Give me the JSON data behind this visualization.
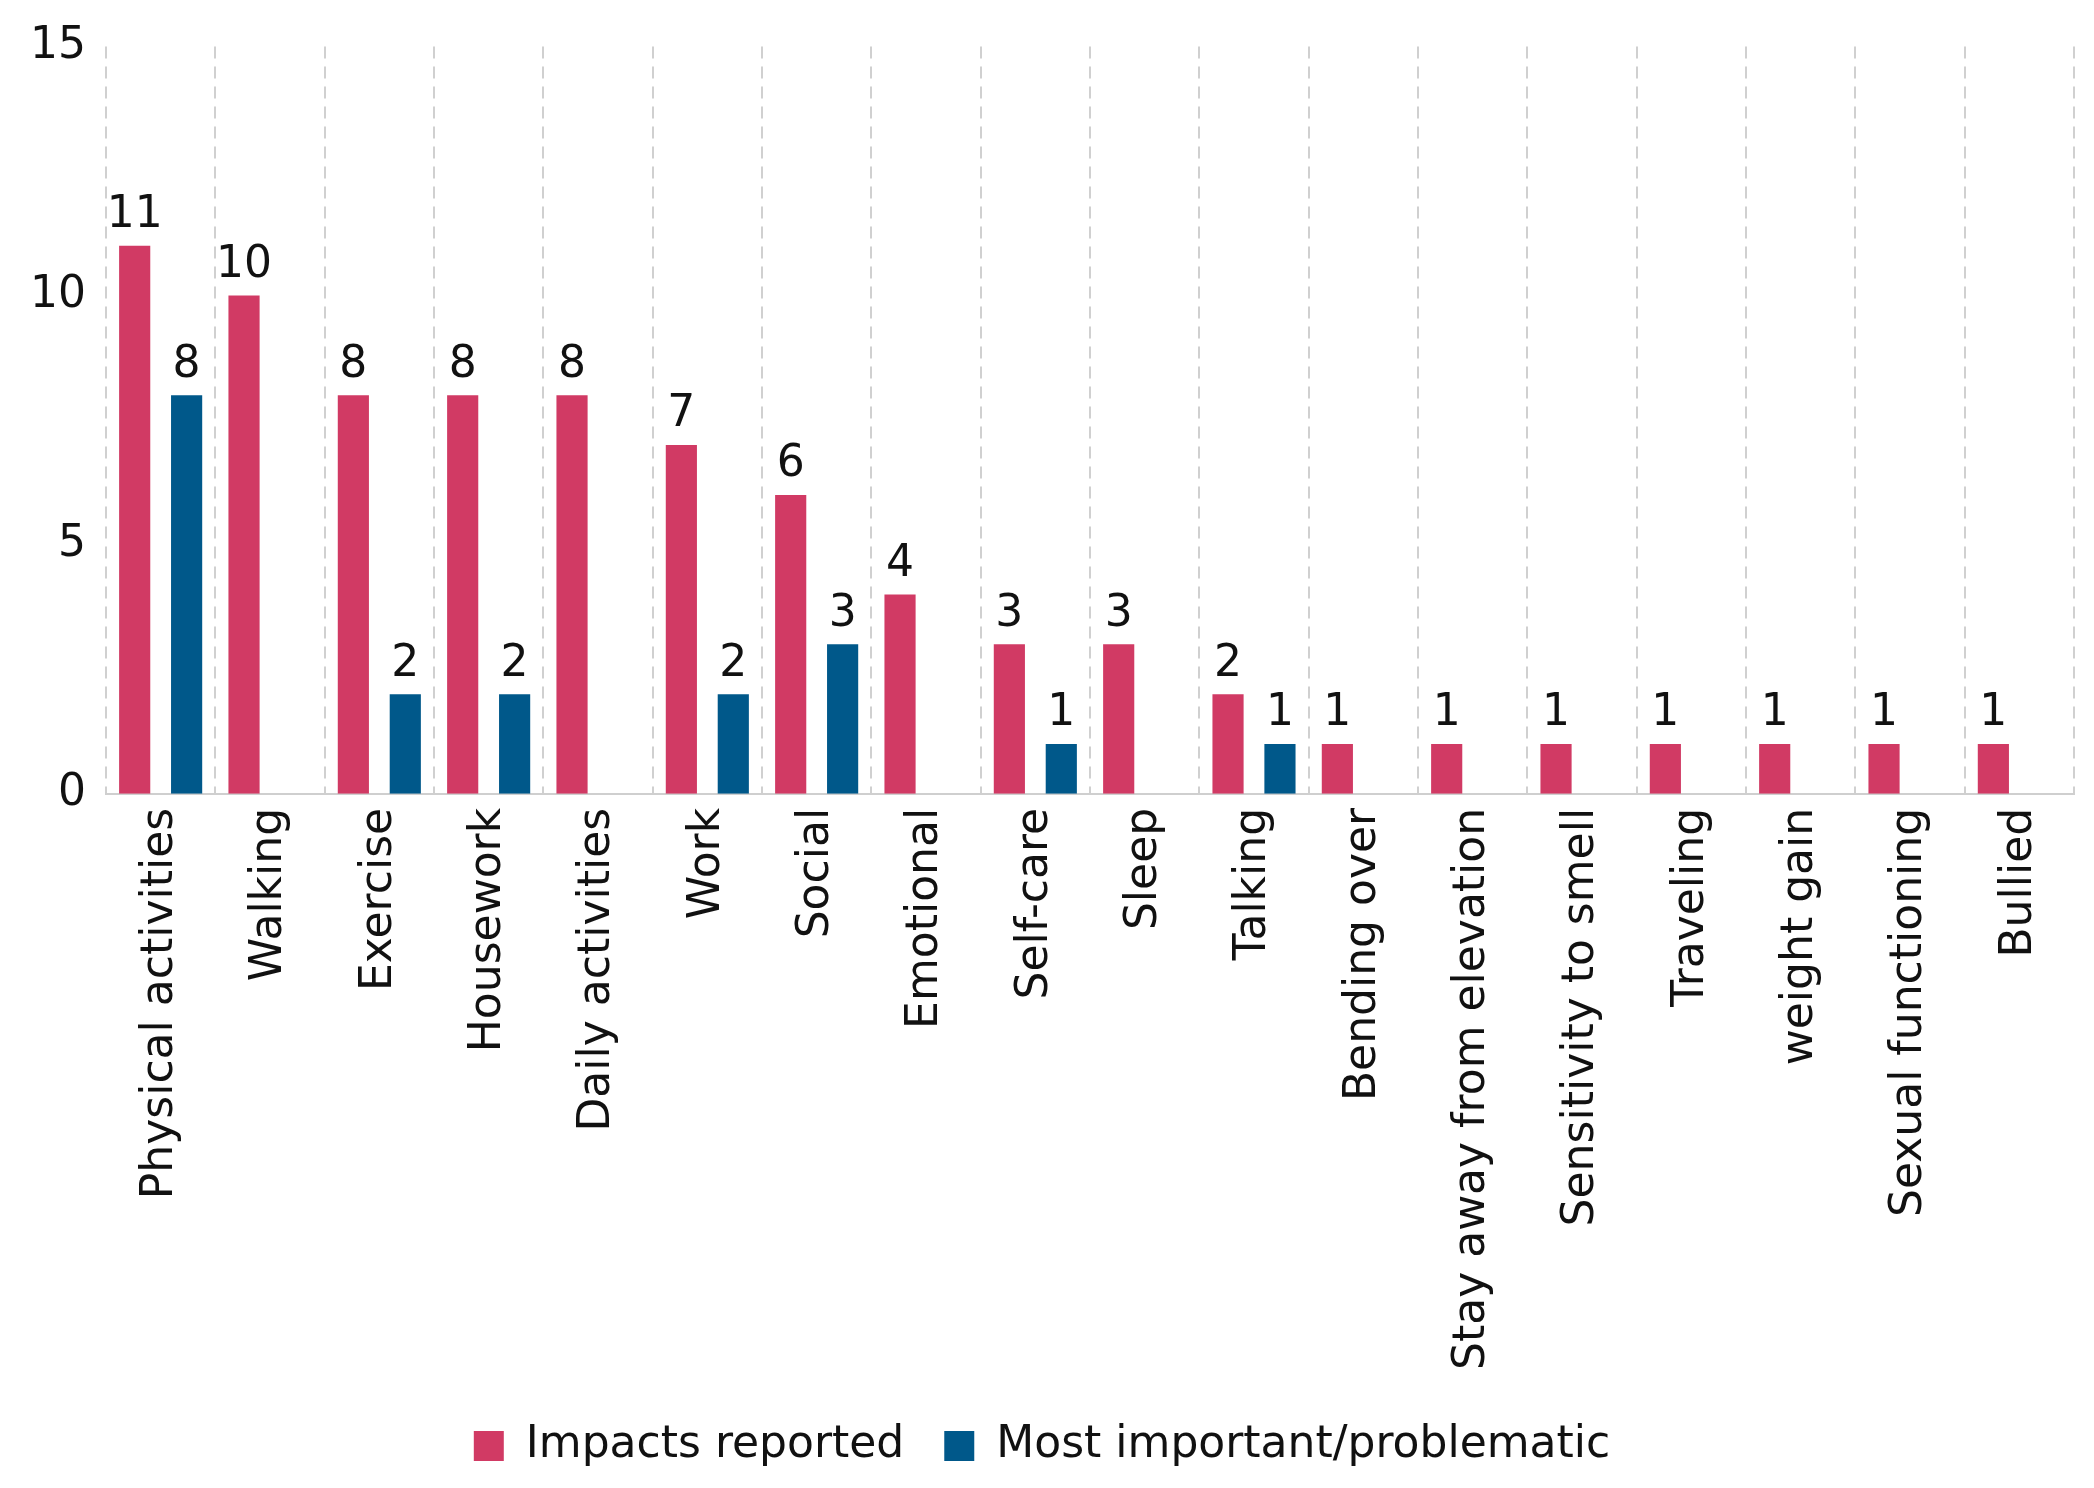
{
  "chart_data": {
    "type": "bar",
    "categories": [
      "Physical activities",
      "Walking",
      "Exercise",
      "Housework",
      "Daily activities",
      "Work",
      "Social",
      "Emotional",
      "Self-care",
      "Sleep",
      "Talking",
      "Bending over",
      "Stay away from elevation",
      "Sensitivity to smell",
      "Traveling",
      "weight gain",
      "Sexual functioning",
      "Bullied"
    ],
    "series": [
      {
        "name": "Impacts reported",
        "color": "#d13a64",
        "values": [
          11,
          10,
          8,
          8,
          8,
          7,
          6,
          4,
          3,
          3,
          2,
          1,
          1,
          1,
          1,
          1,
          1,
          1
        ]
      },
      {
        "name": "Most important/problematic",
        "color": "#00588a",
        "values": [
          8,
          null,
          2,
          2,
          null,
          2,
          3,
          null,
          1,
          null,
          1,
          null,
          null,
          null,
          null,
          null,
          null,
          null
        ]
      }
    ],
    "ylim": [
      0,
      15
    ],
    "yticks": [
      0,
      5,
      10,
      15
    ],
    "grid": "x",
    "legend": "bottom",
    "data_labels": true
  }
}
